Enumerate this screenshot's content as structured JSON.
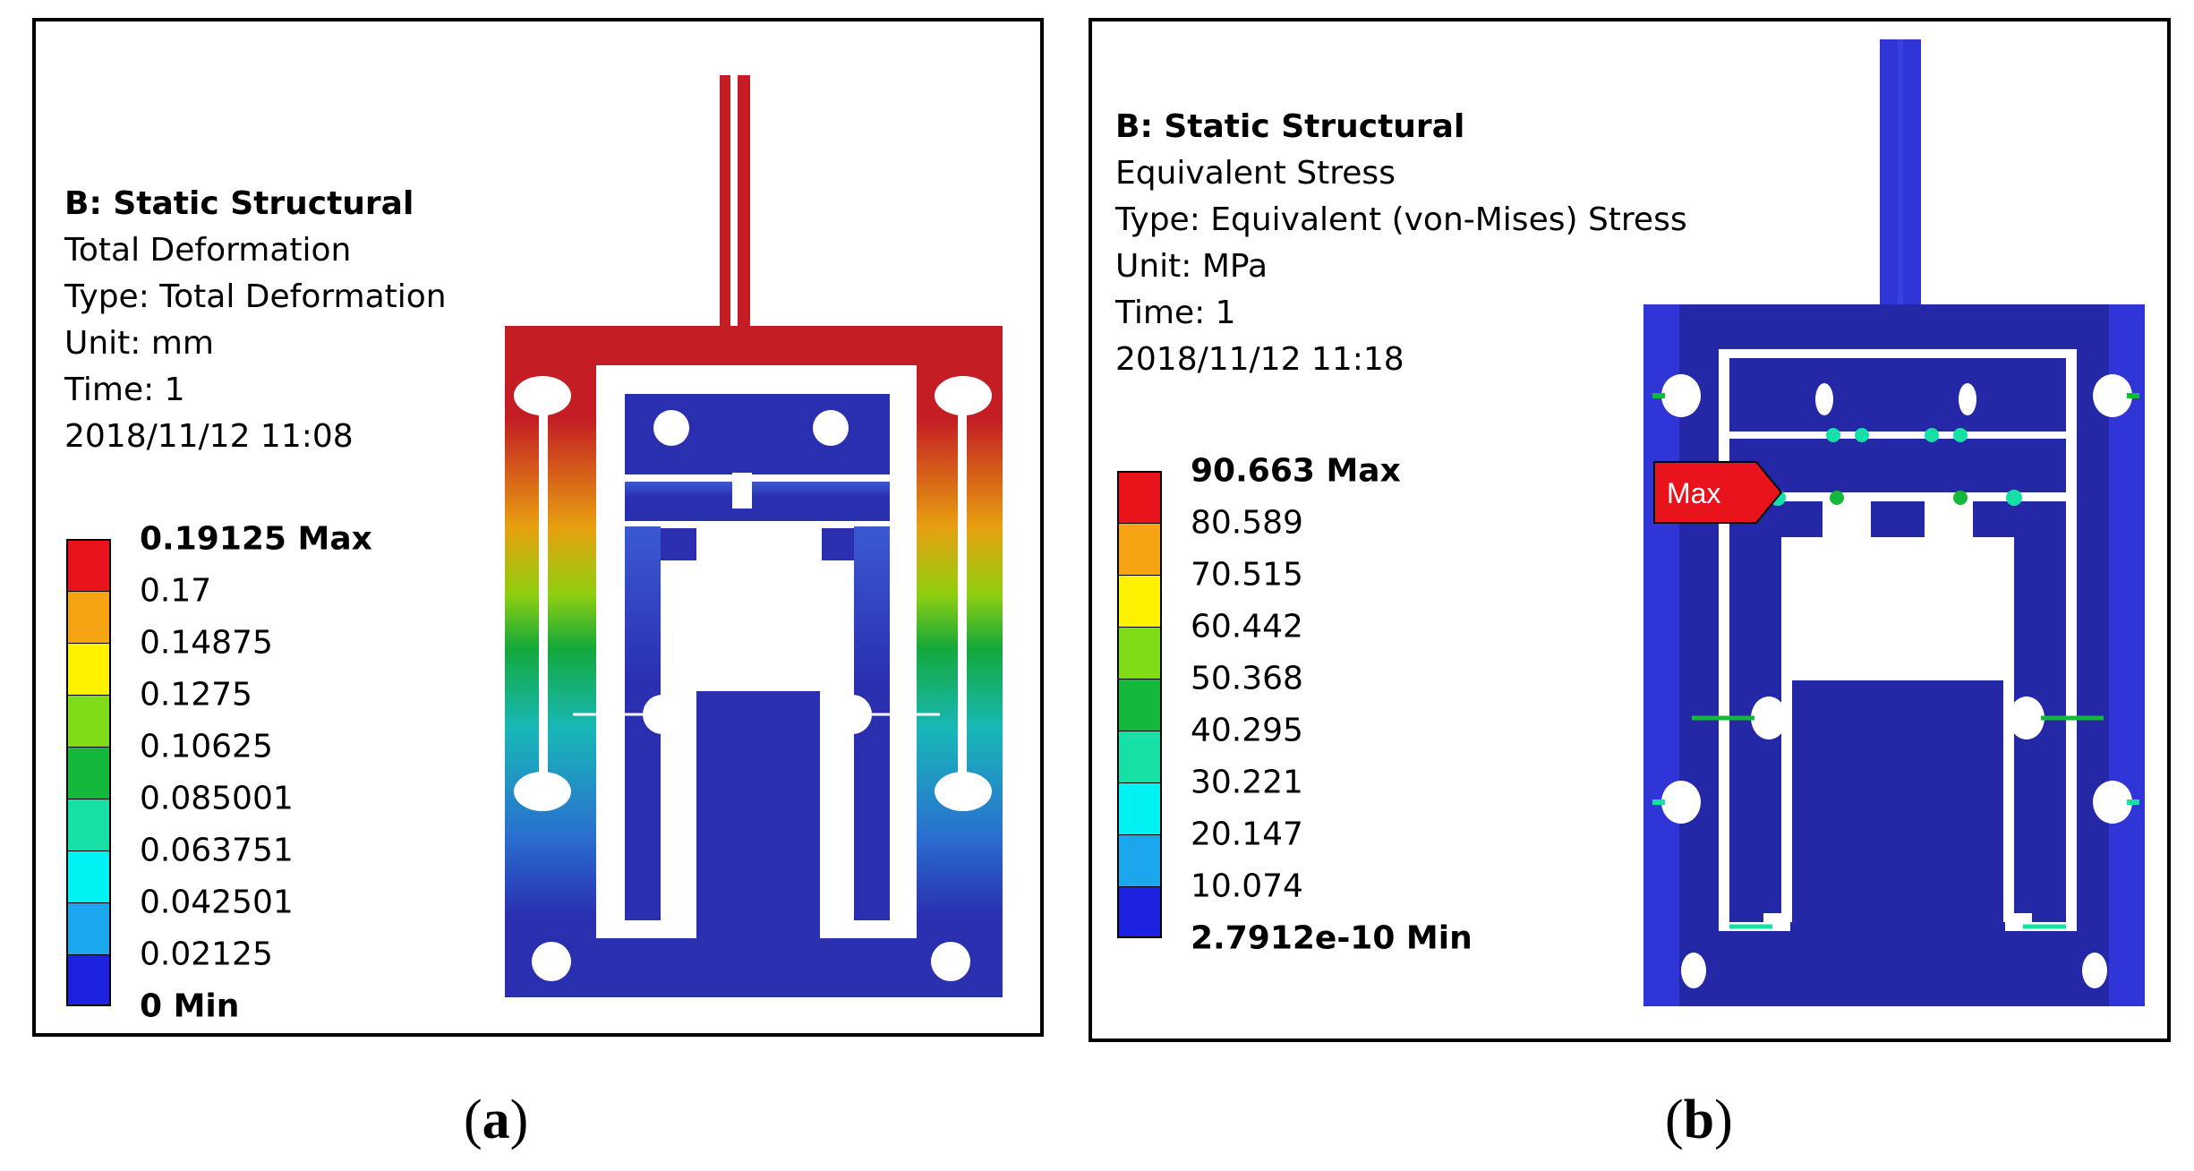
{
  "panel_a": {
    "info": [
      "B: Static Structural",
      "Total Deformation",
      "Type: Total Deformation",
      "Unit: mm",
      "Time: 1",
      "2018/11/12 11:08"
    ],
    "legend": {
      "labels": [
        "0.19125 Max",
        "0.17",
        "0.14875",
        "0.1275",
        "0.10625",
        "0.085001",
        "0.063751",
        "0.042501",
        "0.02125",
        "0 Min"
      ],
      "colors": [
        "#e8131b",
        "#f7a412",
        "#fff200",
        "#7fdc16",
        "#14b83a",
        "#16e0a6",
        "#00f2f2",
        "#1aa6ec",
        "#1d22e0"
      ]
    },
    "caption": {
      "open": "(",
      "letter": "a",
      "close": ")"
    }
  },
  "panel_b": {
    "info": [
      "B: Static Structural",
      "Equivalent Stress",
      "Type: Equivalent (von-Mises) Stress",
      "Unit: MPa",
      "Time: 1",
      "2018/11/12 11:18"
    ],
    "legend": {
      "labels": [
        "90.663 Max",
        "80.589",
        "70.515",
        "60.442",
        "50.368",
        "40.295",
        "30.221",
        "20.147",
        "10.074",
        "2.7912e-10 Min"
      ],
      "colors": [
        "#e8131b",
        "#f7a412",
        "#fff200",
        "#7fdc16",
        "#14b83a",
        "#16e0a6",
        "#00f2f2",
        "#1aa6ec",
        "#1d22e0"
      ]
    },
    "max_flag": "Max",
    "caption": {
      "open": "(",
      "letter": "b",
      "close": ")"
    }
  },
  "colors": {
    "model_blue": "#2a2fb0",
    "model_red": "#c41e24",
    "stress_blue": "#2428a6",
    "stress_side": "#2f35d6"
  }
}
